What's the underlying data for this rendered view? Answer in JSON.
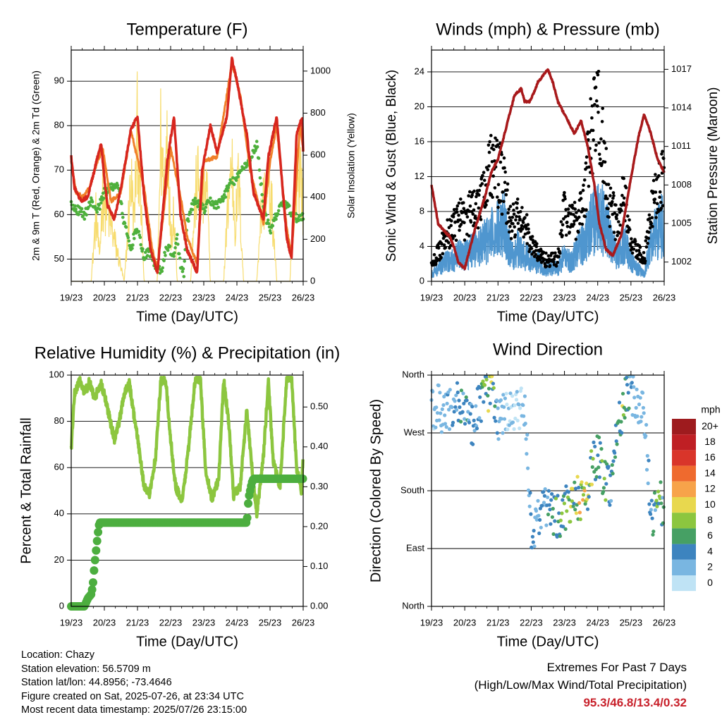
{
  "chart_data": [
    {
      "type": "line",
      "title": "Temperature (F)",
      "xlabel": "Time (Day/UTC)",
      "ylabel": "2m & 9m T (Red, Orange) & 2m Td (Green)",
      "ylabel_right": "Solar Insolation (Yellow)",
      "x_ticks": [
        "19/23",
        "20/23",
        "21/23",
        "22/23",
        "23/23",
        "24/23",
        "25/23",
        "26/23"
      ],
      "xlim": [
        0,
        7
      ],
      "ylim": [
        45,
        97
      ],
      "y_ticks": [
        50,
        60,
        70,
        80,
        90
      ],
      "ylim_right": [
        0,
        1100
      ],
      "y_ticks_right": [
        0,
        200,
        400,
        600,
        800,
        1000
      ],
      "grid": "horizontal",
      "colors": {
        "t2m": "#d7261e",
        "t9m": "#f0802a",
        "td": "#4eb03c",
        "solar": "#f7dc6f"
      },
      "series": [
        {
          "name": "2m T",
          "x": [
            0,
            0.1,
            0.3,
            0.5,
            0.7,
            0.9,
            1.0,
            1.1,
            1.3,
            1.5,
            1.8,
            2.0,
            2.2,
            2.4,
            2.6,
            2.9,
            3.1,
            3.3,
            3.5,
            3.8,
            3.95,
            4.2,
            4.4,
            4.7,
            4.85,
            5.0,
            5.2,
            5.3,
            5.5,
            5.8,
            5.95,
            6.2,
            6.5,
            6.65,
            6.8,
            6.97,
            7.0
          ],
          "y": [
            73,
            66,
            63,
            64,
            70,
            76,
            68,
            62,
            59,
            66,
            79,
            82,
            64,
            52,
            47,
            72,
            82,
            60,
            52,
            47,
            70,
            80,
            74,
            82,
            95,
            90,
            82,
            78,
            65,
            59,
            73,
            82,
            55,
            50,
            78,
            82,
            74
          ]
        },
        {
          "name": "9m T",
          "x": [
            0,
            0.15,
            0.35,
            0.55,
            0.8,
            0.95,
            1.2,
            1.5,
            1.8,
            2.2,
            2.45,
            2.6,
            3.0,
            3.3,
            3.5,
            3.8,
            4.0,
            4.4,
            4.85,
            5.1,
            5.4,
            5.8,
            6.0,
            6.2,
            6.5,
            6.65,
            6.9,
            7.0
          ],
          "y": [
            72,
            65,
            64,
            66,
            72,
            75,
            63,
            65,
            79,
            66,
            52,
            48,
            75,
            64,
            55,
            49,
            72,
            73,
            94,
            87,
            70,
            58,
            72,
            80,
            57,
            51,
            80,
            75
          ]
        },
        {
          "name": "2m Td",
          "x": [
            0,
            0.2,
            0.4,
            0.6,
            0.8,
            1.0,
            1.2,
            1.4,
            1.6,
            1.8,
            1.95,
            2.1,
            2.2,
            2.35,
            2.5,
            2.7,
            2.9,
            3.0,
            3.1,
            3.2,
            3.3,
            3.4,
            3.5,
            3.7,
            3.9,
            4.0,
            4.2,
            4.4,
            4.6,
            4.8,
            5.0,
            5.2,
            5.4,
            5.6,
            5.8,
            6.0,
            6.2,
            6.4,
            6.6,
            6.8,
            7.0
          ],
          "y": [
            62,
            61,
            60,
            63,
            61,
            65,
            66,
            67,
            58,
            52,
            57,
            54,
            50,
            52,
            49,
            47,
            53,
            52,
            50,
            55,
            48,
            47,
            58,
            63,
            62,
            61,
            63,
            62,
            64,
            67,
            68,
            71,
            72,
            76,
            62,
            56,
            60,
            63,
            61,
            59,
            60
          ]
        },
        {
          "name": "Solar Insolation",
          "axis": "right",
          "x": [
            0,
            0.6,
            0.75,
            0.85,
            0.95,
            1.6,
            1.7,
            1.8,
            1.9,
            2.0,
            2.1,
            2.2,
            2.6,
            2.7,
            2.8,
            2.9,
            3.0,
            3.1,
            3.2,
            3.6,
            3.7,
            3.8,
            3.95,
            4.1,
            4.2,
            4.6,
            4.75,
            4.85,
            4.95,
            5.05,
            5.2,
            5.6,
            5.7,
            5.85,
            5.95,
            6.05,
            6.2,
            6.6,
            6.75,
            6.9,
            7.0
          ],
          "y": [
            0,
            0,
            450,
            150,
            600,
            0,
            300,
            700,
            400,
            1050,
            500,
            0,
            0,
            950,
            600,
            1080,
            300,
            500,
            0,
            0,
            400,
            700,
            550,
            600,
            0,
            0,
            600,
            800,
            350,
            700,
            0,
            0,
            400,
            600,
            650,
            500,
            0,
            0,
            650,
            800,
            500
          ]
        }
      ]
    },
    {
      "type": "scatter",
      "title": "Winds (mph) & Pressure (mb)",
      "xlabel": "Time (Day/UTC)",
      "ylabel": "Sonic Wind & Gust (Blue, Black)",
      "ylabel_right": "Station Pressure (Maroon)",
      "x_ticks": [
        "19/23",
        "20/23",
        "21/23",
        "22/23",
        "23/23",
        "24/23",
        "25/23",
        "26/23"
      ],
      "xlim": [
        0,
        7
      ],
      "ylim": [
        0,
        26.5
      ],
      "y_ticks": [
        0,
        4,
        8,
        12,
        16,
        20,
        24
      ],
      "ylim_right": [
        1000.5,
        1018.5
      ],
      "y_ticks_right": [
        1002,
        1005,
        1008,
        1011,
        1014,
        1017
      ],
      "grid": "horizontal",
      "colors": {
        "wind": "#4f96cf",
        "gust": "#000000",
        "pressure": "#a8191b"
      },
      "series": [
        {
          "name": "Wind",
          "x": [
            0,
            0.2,
            0.4,
            0.6,
            0.8,
            1.0,
            1.2,
            1.4,
            1.6,
            1.8,
            2.0,
            2.2,
            2.4,
            2.6,
            2.8,
            3.0,
            3.2,
            3.4,
            3.6,
            3.8,
            4.0,
            4.2,
            4.4,
            4.6,
            4.8,
            5.0,
            5.2,
            5.4,
            5.6,
            5.8,
            6.0,
            6.2,
            6.4,
            6.6,
            6.8,
            7.0
          ],
          "y": [
            1,
            2,
            3,
            3,
            4,
            4,
            5,
            5,
            6,
            7,
            8,
            9,
            4,
            5,
            4,
            3,
            3,
            2,
            2,
            2,
            4,
            3,
            5,
            6,
            9,
            10,
            9,
            6,
            4,
            6,
            3,
            2,
            1,
            6,
            8,
            9
          ]
        },
        {
          "name": "Gust",
          "x": [
            0,
            0.2,
            0.4,
            0.6,
            0.8,
            1.0,
            1.2,
            1.4,
            1.6,
            1.8,
            2.0,
            2.2,
            2.4,
            2.6,
            2.8,
            3.0,
            3.2,
            3.4,
            3.6,
            3.8,
            4.0,
            4.2,
            4.4,
            4.6,
            4.8,
            5.0,
            5.2,
            5.4,
            5.6,
            5.8,
            6.0,
            6.2,
            6.4,
            6.6,
            6.8,
            7.0
          ],
          "y": [
            2,
            4,
            6,
            7,
            9,
            8,
            10,
            11,
            14,
            16,
            15,
            13,
            8,
            9,
            8,
            5,
            4,
            3,
            3,
            3,
            10,
            8,
            9,
            12,
            20,
            24,
            17,
            10,
            8,
            12,
            5,
            4,
            3,
            9,
            14,
            15
          ]
        },
        {
          "name": "Station Pressure",
          "axis": "right",
          "x": [
            0,
            0.2,
            0.35,
            0.55,
            0.7,
            0.8,
            1.0,
            1.15,
            1.3,
            1.6,
            1.8,
            2.0,
            2.2,
            2.4,
            2.5,
            2.7,
            2.8,
            2.95,
            3.05,
            3.2,
            3.35,
            3.5,
            3.65,
            3.8,
            4.0,
            4.3,
            4.5,
            4.7,
            4.9,
            5.05,
            5.25,
            5.45,
            5.7,
            5.9,
            6.1,
            6.25,
            6.4,
            6.6,
            6.8,
            7.0
          ],
          "y": [
            1008,
            1005,
            1004.5,
            1004,
            1003,
            1002,
            1001.5,
            1003,
            1004.5,
            1007,
            1009,
            1010,
            1012,
            1014,
            1015,
            1015.5,
            1014.5,
            1014.5,
            1015,
            1016,
            1016.5,
            1017,
            1016,
            1014.5,
            1013.5,
            1012,
            1013,
            1011,
            1008,
            1005,
            1003,
            1002.5,
            1004,
            1007,
            1010,
            1012,
            1013.5,
            1012,
            1010,
            1009
          ]
        }
      ]
    },
    {
      "type": "line",
      "title": "Relative Humidity (%) & Precipitation (in)",
      "xlabel": "Time (Day/UTC)",
      "ylabel": "Percent & Total Rainfall",
      "x_ticks": [
        "19/23",
        "20/23",
        "21/23",
        "22/23",
        "23/23",
        "24/23",
        "25/23",
        "26/23"
      ],
      "xlim": [
        0,
        7
      ],
      "ylim": [
        0,
        100
      ],
      "y_ticks": [
        0,
        20,
        40,
        60,
        80,
        100
      ],
      "ylim_right": [
        0,
        0.58
      ],
      "y_ticks_right": [
        "0.00",
        "0.10",
        "0.20",
        "0.30",
        "0.40",
        "0.50"
      ],
      "grid": "horizontal",
      "colors": {
        "rh": "#8cc63f",
        "precip": "#4cae3f"
      },
      "series": [
        {
          "name": "RH",
          "x": [
            0,
            0.1,
            0.25,
            0.4,
            0.55,
            0.7,
            0.9,
            1.0,
            1.15,
            1.3,
            1.45,
            1.6,
            1.75,
            1.9,
            2.05,
            2.2,
            2.35,
            2.55,
            2.7,
            2.85,
            3.0,
            3.15,
            3.35,
            3.55,
            3.75,
            3.9,
            4.05,
            4.25,
            4.45,
            4.6,
            4.75,
            4.9,
            5.1,
            5.3,
            5.45,
            5.6,
            5.8,
            5.95,
            6.1,
            6.3,
            6.5,
            6.65,
            6.8,
            6.95,
            7.0
          ],
          "y": [
            68,
            92,
            98,
            92,
            97,
            90,
            96,
            92,
            82,
            72,
            80,
            92,
            97,
            82,
            68,
            52,
            48,
            65,
            97,
            98,
            72,
            52,
            45,
            70,
            99,
            98,
            60,
            46,
            55,
            98,
            80,
            48,
            52,
            85,
            60,
            40,
            65,
            97,
            62,
            52,
            98,
            99,
            60,
            50,
            67
          ]
        },
        {
          "name": "Total Rainfall",
          "axis": "right",
          "x": [
            0,
            0.4,
            0.5,
            0.6,
            0.65,
            0.7,
            0.75,
            0.8,
            0.85,
            0.9,
            5.3,
            5.35,
            5.4,
            5.45,
            5.5,
            7.0
          ],
          "y": [
            0,
            0,
            0.02,
            0.03,
            0.05,
            0.1,
            0.14,
            0.18,
            0.21,
            0.21,
            0.21,
            0.27,
            0.29,
            0.31,
            0.32,
            0.32
          ]
        }
      ]
    },
    {
      "type": "scatter",
      "title": "Wind Direction",
      "xlabel": "Time (Day/UTC)",
      "ylabel": "Direction (Colored By Speed)",
      "x_ticks": [
        "19/23",
        "20/23",
        "21/23",
        "22/23",
        "23/23",
        "24/23",
        "25/23",
        "26/23"
      ],
      "xlim": [
        0,
        7
      ],
      "y_ticks": [
        "North",
        "West",
        "South",
        "East",
        "North"
      ],
      "ylim_degrees": [
        0,
        360
      ],
      "grid": "horizontal",
      "legend": {
        "title": "mph",
        "labels": [
          "20+",
          "18",
          "16",
          "14",
          "12",
          "10",
          "8",
          "6",
          "4",
          "2",
          "0"
        ],
        "colors": [
          "#9e1b1e",
          "#bf1f24",
          "#d9352a",
          "#ef6a2e",
          "#f7a34a",
          "#e8d84e",
          "#8cc63f",
          "#46a064",
          "#3d84bf",
          "#79b6e1",
          "#bfe3f5"
        ],
        "placement": "right"
      },
      "series": [
        {
          "name": "Direction",
          "x": [
            0.2,
            0.4,
            0.6,
            0.8,
            1.0,
            1.2,
            1.4,
            1.6,
            1.8,
            2.0,
            2.2,
            2.5,
            2.8,
            3.0,
            3.2,
            3.4,
            3.6,
            3.8,
            4.0,
            4.2,
            4.4,
            4.6,
            4.8,
            5.0,
            5.2,
            5.4,
            5.6,
            5.8,
            6.0,
            6.2,
            6.4,
            6.6,
            6.8,
            7.0
          ],
          "deg": [
            310,
            300,
            315,
            320,
            305,
            280,
            310,
            330,
            335,
            290,
            300,
            300,
            310,
            120,
            130,
            160,
            150,
            140,
            150,
            160,
            170,
            160,
            210,
            240,
            200,
            190,
            280,
            320,
            340,
            310,
            300,
            140,
            160,
            160
          ],
          "speed": [
            2,
            3,
            4,
            5,
            6,
            5,
            4,
            8,
            10,
            3,
            2,
            1,
            2,
            4,
            3,
            5,
            6,
            8,
            7,
            10,
            11,
            12,
            9,
            6,
            8,
            6,
            7,
            9,
            4,
            3,
            2,
            5,
            8,
            6
          ]
        }
      ]
    }
  ],
  "info": {
    "location": "Location: Chazy",
    "elevation": "Station elevation: 56.5709 m",
    "latlon": "Station lat/lon: 44.8956; -73.4646",
    "created": "Figure created on Sat, 2025-07-26, at 23:34 UTC",
    "recent": "Most recent data timestamp: 2025/07/26 23:15:00"
  },
  "extremes": {
    "line1": "Extremes For Past 7 Days",
    "line2": "(High/Low/Max Wind/Total Precipitation)",
    "values": "95.3/46.8/13.4/0.32"
  }
}
